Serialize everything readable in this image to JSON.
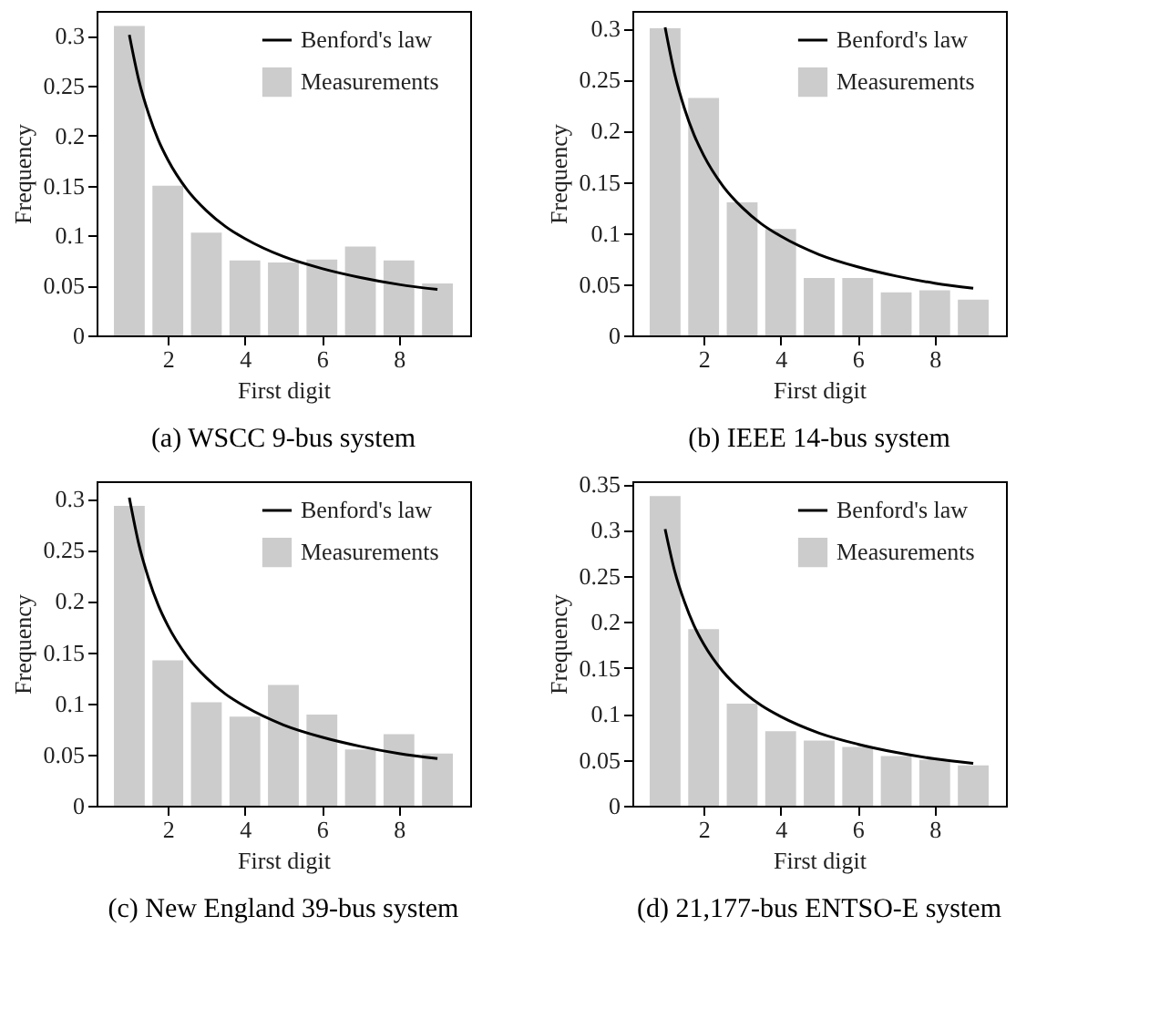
{
  "chart_data": [
    {
      "type": "bar",
      "title": "(a) WSCC 9-bus system",
      "xlabel": "First digit",
      "ylabel": "Frequency",
      "xlim": [
        0.15,
        9.85
      ],
      "xticks": [
        2,
        4,
        6,
        8
      ],
      "ylim": [
        0,
        0.325
      ],
      "yticks": [
        0,
        0.05,
        0.1,
        0.15,
        0.2,
        0.25,
        0.3
      ],
      "legend": "top right",
      "grid": false,
      "series": [
        {
          "name": "Measurements",
          "color": "#cccccc",
          "x": [
            1,
            2,
            3,
            4,
            5,
            6,
            7,
            8,
            9
          ],
          "values": [
            0.31,
            0.15,
            0.103,
            0.075,
            0.073,
            0.076,
            0.089,
            0.075,
            0.052
          ]
        },
        {
          "name": "Benford's law",
          "type": "line",
          "color": "#000000",
          "x": [
            1,
            1.25,
            1.5,
            1.75,
            2,
            2.5,
            3,
            3.5,
            4,
            5,
            6,
            7,
            8,
            9
          ],
          "values": [
            0.301,
            0.255,
            0.222,
            0.196,
            0.176,
            0.146,
            0.125,
            0.109,
            0.097,
            0.079,
            0.067,
            0.058,
            0.051,
            0.046
          ]
        }
      ]
    },
    {
      "type": "bar",
      "title": "(b) IEEE 14-bus system",
      "xlabel": "First digit",
      "ylabel": "Frequency",
      "xlim": [
        0.15,
        9.85
      ],
      "xticks": [
        2,
        4,
        6,
        8
      ],
      "ylim": [
        0,
        0.317
      ],
      "yticks": [
        0,
        0.05,
        0.1,
        0.15,
        0.2,
        0.25,
        0.3
      ],
      "legend": "top right",
      "grid": false,
      "series": [
        {
          "name": "Measurements",
          "color": "#cccccc",
          "x": [
            1,
            2,
            3,
            4,
            5,
            6,
            7,
            8,
            9
          ],
          "values": [
            0.3,
            0.232,
            0.13,
            0.104,
            0.056,
            0.056,
            0.042,
            0.044,
            0.035
          ]
        },
        {
          "name": "Benford's law",
          "type": "line",
          "color": "#000000",
          "x": [
            1,
            1.25,
            1.5,
            1.75,
            2,
            2.5,
            3,
            3.5,
            4,
            5,
            6,
            7,
            8,
            9
          ],
          "values": [
            0.301,
            0.255,
            0.222,
            0.196,
            0.176,
            0.146,
            0.125,
            0.109,
            0.097,
            0.079,
            0.067,
            0.058,
            0.051,
            0.046
          ]
        }
      ]
    },
    {
      "type": "bar",
      "title": "(c) New England 39-bus system",
      "xlabel": "First digit",
      "ylabel": "Frequency",
      "xlim": [
        0.15,
        9.85
      ],
      "xticks": [
        2,
        4,
        6,
        8
      ],
      "ylim": [
        0,
        0.317
      ],
      "yticks": [
        0,
        0.05,
        0.1,
        0.15,
        0.2,
        0.25,
        0.3
      ],
      "legend": "top right",
      "grid": false,
      "series": [
        {
          "name": "Measurements",
          "color": "#cccccc",
          "x": [
            1,
            2,
            3,
            4,
            5,
            6,
            7,
            8,
            9
          ],
          "values": [
            0.293,
            0.142,
            0.101,
            0.087,
            0.118,
            0.089,
            0.055,
            0.07,
            0.051
          ]
        },
        {
          "name": "Benford's law",
          "type": "line",
          "color": "#000000",
          "x": [
            1,
            1.25,
            1.5,
            1.75,
            2,
            2.5,
            3,
            3.5,
            4,
            5,
            6,
            7,
            8,
            9
          ],
          "values": [
            0.301,
            0.255,
            0.222,
            0.196,
            0.176,
            0.146,
            0.125,
            0.109,
            0.097,
            0.079,
            0.067,
            0.058,
            0.051,
            0.046
          ]
        }
      ]
    },
    {
      "type": "bar",
      "title": "(d) 21,177-bus ENTSO-E system",
      "xlabel": "First digit",
      "ylabel": "Frequency",
      "xlim": [
        0.15,
        9.85
      ],
      "xticks": [
        2,
        4,
        6,
        8
      ],
      "ylim": [
        0,
        0.353
      ],
      "yticks": [
        0,
        0.05,
        0.1,
        0.15,
        0.2,
        0.25,
        0.3,
        0.35
      ],
      "legend": "top right",
      "grid": false,
      "series": [
        {
          "name": "Measurements",
          "color": "#cccccc",
          "x": [
            1,
            2,
            3,
            4,
            5,
            6,
            7,
            8,
            9
          ],
          "values": [
            0.337,
            0.192,
            0.111,
            0.081,
            0.071,
            0.064,
            0.054,
            0.05,
            0.044
          ]
        },
        {
          "name": "Benford's law",
          "type": "line",
          "color": "#000000",
          "x": [
            1,
            1.25,
            1.5,
            1.75,
            2,
            2.5,
            3,
            3.5,
            4,
            5,
            6,
            7,
            8,
            9
          ],
          "values": [
            0.301,
            0.255,
            0.222,
            0.196,
            0.176,
            0.146,
            0.125,
            0.109,
            0.097,
            0.079,
            0.067,
            0.058,
            0.051,
            0.046
          ]
        }
      ]
    }
  ]
}
